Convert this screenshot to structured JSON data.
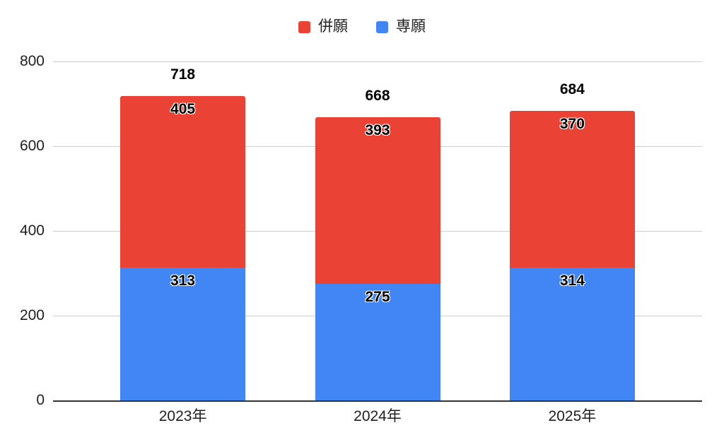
{
  "chart_data": {
    "type": "bar",
    "stacked": true,
    "categories": [
      "2023年",
      "2024年",
      "2025年"
    ],
    "series": [
      {
        "name": "併願",
        "color": "#EA4335",
        "values": [
          405,
          393,
          370
        ]
      },
      {
        "name": "専願",
        "color": "#4285F4",
        "values": [
          313,
          275,
          314
        ]
      }
    ],
    "stack_order_bottom_to_top": [
      "専願",
      "併願"
    ],
    "totals": [
      718,
      668,
      684
    ],
    "ylim": [
      0,
      800
    ],
    "yticks": [
      0,
      200,
      400,
      600,
      800
    ],
    "grid": true,
    "legend_position": "top",
    "background_color": "#ffffff",
    "grid_color": "#cccccc",
    "axis_color": "#333333",
    "label_color": "#000000"
  }
}
